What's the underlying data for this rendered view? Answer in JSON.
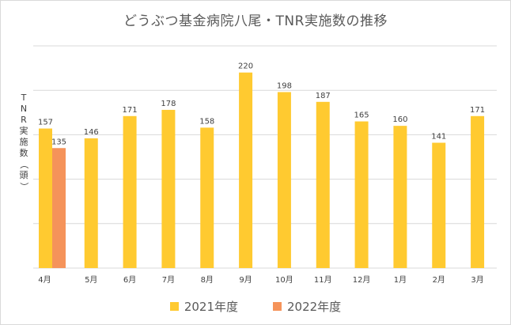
{
  "chart_data": {
    "type": "bar",
    "title": "どうぶつ基金病院八尾・TNR実施数の推移",
    "xlabel": "",
    "ylabel": "TNR実施数（頭）",
    "categories": [
      "4月",
      "5月",
      "6月",
      "7月",
      "8月",
      "9月",
      "10月",
      "11月",
      "12月",
      "1月",
      "2月",
      "3月"
    ],
    "ylim": [
      0,
      250
    ],
    "grid": true,
    "legend_position": "bottom",
    "series": [
      {
        "name": "2021年度",
        "color": "#FFCA30",
        "values": [
          157,
          146,
          171,
          178,
          158,
          220,
          198,
          187,
          165,
          160,
          141,
          171
        ]
      },
      {
        "name": "2022年度",
        "color": "#F5935A",
        "values": [
          135,
          null,
          null,
          null,
          null,
          null,
          null,
          null,
          null,
          null,
          null,
          null
        ]
      }
    ]
  }
}
